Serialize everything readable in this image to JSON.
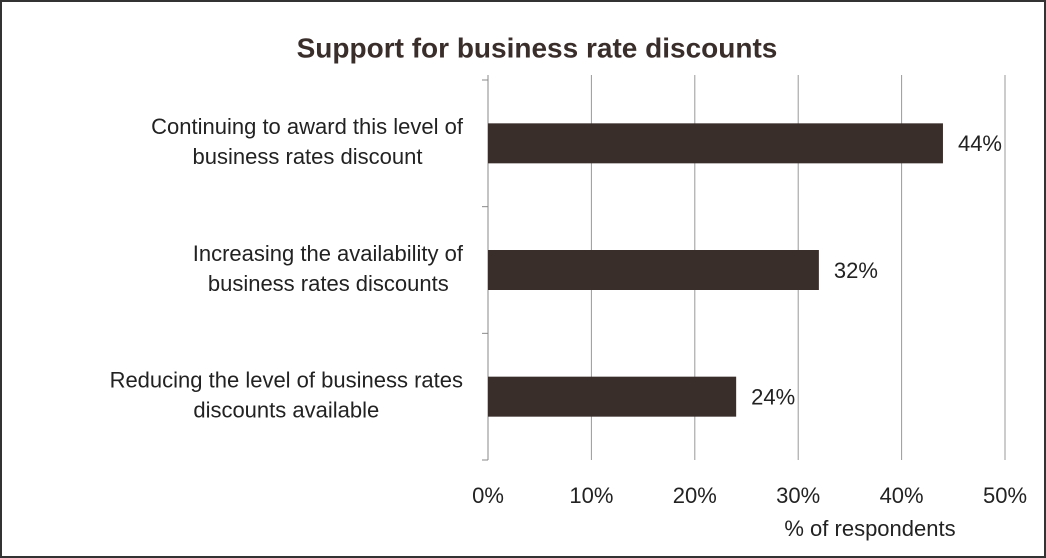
{
  "chart_data": {
    "type": "bar",
    "orientation": "horizontal",
    "title": "Support for business rate discounts",
    "categories": [
      [
        "Continuing to award this level of",
        "business rates discount"
      ],
      [
        "Increasing the availability of",
        "business rates discounts"
      ],
      [
        "Reducing the level of business rates",
        "discounts available"
      ]
    ],
    "values": [
      44,
      32,
      24
    ],
    "value_labels": [
      "44%",
      "32%",
      "24%"
    ],
    "color": "#3a2e2b",
    "xlim": [
      0,
      50
    ],
    "xticks": [
      {
        "value": 0,
        "label": "0%"
      },
      {
        "value": 10,
        "label": "10%"
      },
      {
        "value": 20,
        "label": "20%"
      },
      {
        "value": 30,
        "label": "30%"
      },
      {
        "value": 40,
        "label": "40%"
      },
      {
        "value": 50,
        "label": "50%"
      }
    ],
    "x_label": "% of respondents",
    "grid": true
  }
}
